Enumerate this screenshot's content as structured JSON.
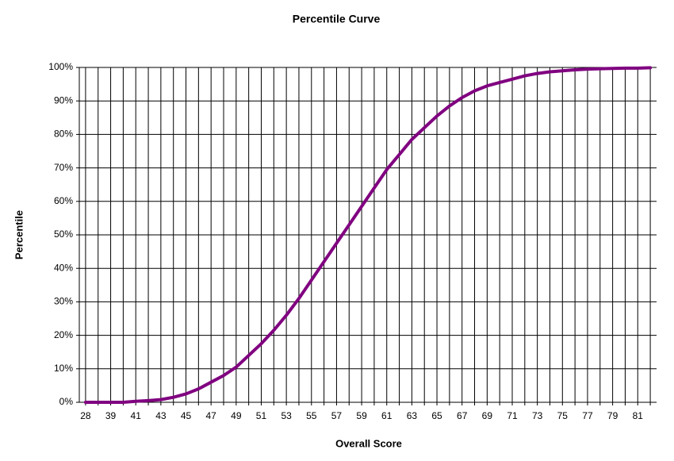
{
  "chart_data": {
    "type": "line",
    "title": "Percentile Curve",
    "x_label": "Overall Score",
    "y_label": "Percentile",
    "categories": [
      "28",
      null,
      "39",
      null,
      "41",
      null,
      "43",
      null,
      "45",
      null,
      "47",
      null,
      "49",
      null,
      "51",
      null,
      "53",
      null,
      "55",
      null,
      "57",
      null,
      "59",
      null,
      "61",
      null,
      "63",
      null,
      "65",
      null,
      "67",
      null,
      "69",
      null,
      "71",
      null,
      "73",
      null,
      "75",
      null,
      "77",
      null,
      "79",
      null,
      "81",
      null
    ],
    "series": [
      {
        "name": "Percentile",
        "color": "#800080",
        "values": [
          0,
          0,
          0,
          0,
          0.3,
          0.5,
          0.8,
          1.5,
          2.5,
          4,
          6,
          8,
          10.5,
          14,
          17.5,
          21.5,
          26,
          31,
          36.5,
          42,
          47.5,
          53,
          58.5,
          64,
          69.5,
          74,
          78.5,
          82,
          85.5,
          88.5,
          91,
          93,
          94.5,
          95.5,
          96.5,
          97.5,
          98.2,
          98.7,
          99,
          99.3,
          99.5,
          99.6,
          99.7,
          99.8,
          99.8,
          99.9
        ]
      }
    ],
    "ylim": [
      0,
      100
    ],
    "yticks": [
      {
        "value": 0,
        "label": "0%"
      },
      {
        "value": 10,
        "label": "10%"
      },
      {
        "value": 20,
        "label": "20%"
      },
      {
        "value": 30,
        "label": "30%"
      },
      {
        "value": 40,
        "label": "40%"
      },
      {
        "value": 50,
        "label": "50%"
      },
      {
        "value": 60,
        "label": "60%"
      },
      {
        "value": 70,
        "label": "70%"
      },
      {
        "value": 80,
        "label": "80%"
      },
      {
        "value": 90,
        "label": "90%"
      },
      {
        "value": 100,
        "label": "100%"
      }
    ],
    "grid": true
  }
}
